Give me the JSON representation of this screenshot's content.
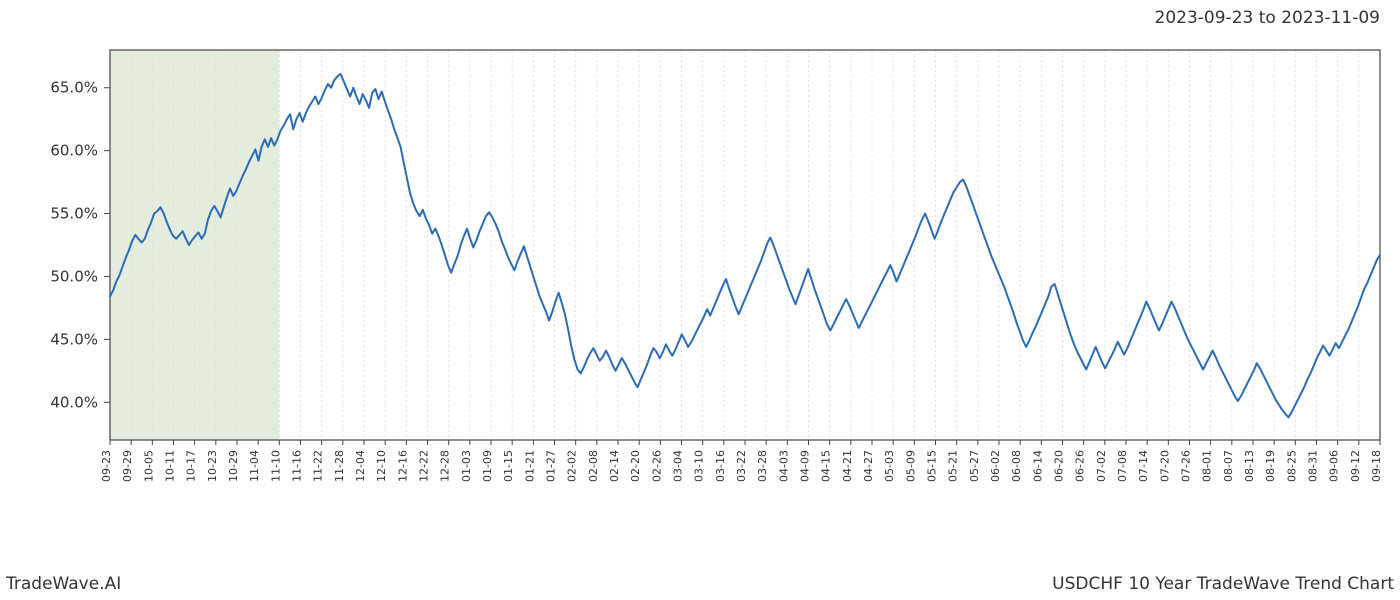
{
  "header": {
    "date_range": "2023-09-23 to 2023-11-09"
  },
  "footer": {
    "left": "TradeWave.AI",
    "right": "USDCHF 10 Year TradeWave Trend Chart"
  },
  "chart": {
    "type": "line",
    "background_color": "#ffffff",
    "plot_border_color": "#444444",
    "plot_border_width": 1.2,
    "grid_color": "#d8d8d8",
    "grid_dash": "2,3",
    "line_color": "#2a6db5",
    "line_width": 2,
    "highlight_fill": "#dfe9d8",
    "highlight_opacity": 0.85,
    "highlight_range_indices": [
      0,
      24
    ],
    "ylim": [
      37,
      68
    ],
    "yticks": [
      40,
      45,
      50,
      55,
      60,
      65
    ],
    "ytick_labels": [
      "40.0%",
      "45.0%",
      "50.0%",
      "55.0%",
      "60.0%",
      "65.0%"
    ],
    "ytick_fontsize": 15,
    "xtick_fontsize": 11,
    "xtick_rotation": -90,
    "x_labels": [
      "09-23",
      "09-29",
      "10-05",
      "10-11",
      "10-17",
      "10-23",
      "10-29",
      "11-04",
      "11-10",
      "11-16",
      "11-22",
      "11-28",
      "12-04",
      "12-10",
      "12-16",
      "12-22",
      "12-28",
      "01-03",
      "01-09",
      "01-15",
      "01-21",
      "01-27",
      "02-02",
      "02-08",
      "02-14",
      "02-20",
      "02-26",
      "03-04",
      "03-10",
      "03-16",
      "03-22",
      "03-28",
      "04-03",
      "04-09",
      "04-15",
      "04-21",
      "04-27",
      "05-03",
      "05-09",
      "05-15",
      "05-21",
      "05-27",
      "06-02",
      "06-08",
      "06-14",
      "06-20",
      "06-26",
      "07-02",
      "07-08",
      "07-14",
      "07-20",
      "07-26",
      "08-01",
      "08-07",
      "08-13",
      "08-19",
      "08-25",
      "08-31",
      "09-06",
      "09-12",
      "09-18"
    ],
    "x_label_step": 3,
    "series": [
      48.4,
      48.9,
      49.6,
      50.1,
      50.8,
      51.5,
      52.1,
      52.8,
      53.3,
      53.0,
      52.7,
      53.0,
      53.7,
      54.3,
      55.0,
      55.2,
      55.5,
      55.0,
      54.3,
      53.7,
      53.2,
      53.0,
      53.3,
      53.6,
      53.0,
      52.5,
      52.9,
      53.2,
      53.5,
      53.0,
      53.4,
      54.5,
      55.2,
      55.6,
      55.2,
      54.7,
      55.5,
      56.3,
      57.0,
      56.4,
      56.8,
      57.4,
      58.0,
      58.5,
      59.1,
      59.6,
      60.1,
      59.2,
      60.3,
      60.9,
      60.3,
      61.0,
      60.4,
      60.9,
      61.6,
      62.0,
      62.5,
      62.9,
      61.7,
      62.5,
      63.0,
      62.3,
      63.0,
      63.5,
      63.9,
      64.3,
      63.7,
      64.2,
      64.8,
      65.3,
      65.0,
      65.6,
      65.9,
      66.1,
      65.5,
      64.9,
      64.3,
      65.0,
      64.3,
      63.7,
      64.5,
      64.0,
      63.4,
      64.6,
      64.9,
      64.1,
      64.7,
      63.9,
      63.2,
      62.5,
      61.7,
      61.0,
      60.3,
      59.0,
      57.8,
      56.6,
      55.8,
      55.2,
      54.8,
      55.3,
      54.6,
      54.1,
      53.4,
      53.8,
      53.2,
      52.5,
      51.7,
      50.9,
      50.3,
      51.0,
      51.6,
      52.5,
      53.2,
      53.8,
      53.0,
      52.3,
      52.9,
      53.6,
      54.2,
      54.8,
      55.1,
      54.7,
      54.2,
      53.6,
      52.8,
      52.2,
      51.5,
      51.0,
      50.5,
      51.2,
      51.8,
      52.4,
      51.6,
      50.8,
      50.0,
      49.2,
      48.4,
      47.8,
      47.2,
      46.5,
      47.2,
      48.0,
      48.7,
      47.9,
      47.0,
      45.8,
      44.5,
      43.4,
      42.6,
      42.3,
      42.8,
      43.4,
      43.9,
      44.3,
      43.8,
      43.3,
      43.6,
      44.1,
      43.6,
      43.0,
      42.5,
      43.0,
      43.5,
      43.1,
      42.6,
      42.1,
      41.6,
      41.2,
      41.8,
      42.4,
      43.0,
      43.7,
      44.3,
      44.0,
      43.5,
      44.0,
      44.6,
      44.1,
      43.7,
      44.2,
      44.8,
      45.4,
      44.9,
      44.4,
      44.8,
      45.3,
      45.8,
      46.3,
      46.8,
      47.4,
      46.9,
      47.5,
      48.1,
      48.7,
      49.3,
      49.8,
      49.0,
      48.3,
      47.6,
      47.0,
      47.6,
      48.2,
      48.8,
      49.4,
      50.0,
      50.6,
      51.2,
      51.9,
      52.6,
      53.1,
      52.5,
      51.8,
      51.1,
      50.4,
      49.7,
      49.0,
      48.4,
      47.8,
      48.5,
      49.2,
      49.9,
      50.6,
      49.8,
      49.0,
      48.3,
      47.6,
      46.9,
      46.2,
      45.7,
      46.2,
      46.7,
      47.2,
      47.7,
      48.2,
      47.7,
      47.1,
      46.5,
      45.9,
      46.4,
      46.9,
      47.4,
      47.9,
      48.4,
      48.9,
      49.4,
      49.9,
      50.4,
      50.9,
      50.3,
      49.6,
      50.2,
      50.8,
      51.4,
      52.0,
      52.6,
      53.2,
      53.9,
      54.5,
      55.0,
      54.4,
      53.7,
      53.0,
      53.6,
      54.3,
      54.9,
      55.5,
      56.1,
      56.7,
      57.1,
      57.5,
      57.7,
      57.2,
      56.5,
      55.8,
      55.1,
      54.4,
      53.7,
      53.0,
      52.3,
      51.6,
      51.0,
      50.4,
      49.8,
      49.2,
      48.5,
      47.8,
      47.1,
      46.3,
      45.6,
      44.9,
      44.4,
      44.9,
      45.5,
      46.0,
      46.6,
      47.2,
      47.8,
      48.4,
      49.2,
      49.4,
      48.6,
      47.8,
      47.0,
      46.2,
      45.4,
      44.7,
      44.1,
      43.6,
      43.1,
      42.6,
      43.2,
      43.8,
      44.4,
      43.8,
      43.2,
      42.7,
      43.2,
      43.7,
      44.2,
      44.8,
      44.3,
      43.8,
      44.3,
      44.9,
      45.5,
      46.1,
      46.7,
      47.3,
      48.0,
      47.5,
      46.9,
      46.3,
      45.7,
      46.2,
      46.8,
      47.4,
      48.0,
      47.5,
      46.9,
      46.3,
      45.7,
      45.1,
      44.6,
      44.1,
      43.6,
      43.1,
      42.6,
      43.1,
      43.6,
      44.1,
      43.6,
      43.0,
      42.5,
      42.0,
      41.5,
      41.0,
      40.5,
      40.1,
      40.5,
      41.0,
      41.5,
      42.0,
      42.5,
      43.1,
      42.7,
      42.2,
      41.7,
      41.2,
      40.7,
      40.2,
      39.8,
      39.4,
      39.1,
      38.8,
      39.2,
      39.7,
      40.2,
      40.7,
      41.2,
      41.8,
      42.3,
      42.9,
      43.5,
      44.0,
      44.5,
      44.1,
      43.7,
      44.2,
      44.7,
      44.3,
      44.8,
      45.3,
      45.8,
      46.4,
      47.0,
      47.6,
      48.3,
      49.0,
      49.5,
      50.1,
      50.7,
      51.3,
      51.7
    ]
  }
}
